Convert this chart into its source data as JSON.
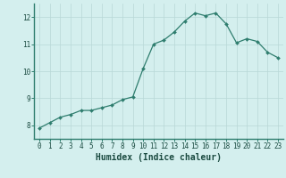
{
  "x": [
    0,
    1,
    2,
    3,
    4,
    5,
    6,
    7,
    8,
    9,
    10,
    11,
    12,
    13,
    14,
    15,
    16,
    17,
    18,
    19,
    20,
    21,
    22,
    23
  ],
  "y": [
    7.9,
    8.1,
    8.3,
    8.4,
    8.55,
    8.55,
    8.65,
    8.75,
    8.95,
    9.05,
    10.1,
    11.0,
    11.15,
    11.45,
    11.85,
    12.15,
    12.05,
    12.15,
    11.75,
    11.05,
    11.2,
    11.1,
    10.7,
    10.5
  ],
  "line_color": "#2e7d6e",
  "marker": "D",
  "marker_size": 2.0,
  "bg_color": "#d4efee",
  "grid_color": "#b8d8d6",
  "xlabel": "Humidex (Indice chaleur)",
  "ylim": [
    7.5,
    12.5
  ],
  "xlim": [
    -0.5,
    23.5
  ],
  "yticks": [
    8,
    9,
    10,
    11,
    12
  ],
  "xticks": [
    0,
    1,
    2,
    3,
    4,
    5,
    6,
    7,
    8,
    9,
    10,
    11,
    12,
    13,
    14,
    15,
    16,
    17,
    18,
    19,
    20,
    21,
    22,
    23
  ],
  "tick_fontsize": 5.5,
  "xlabel_fontsize": 7.0,
  "linewidth": 0.9
}
